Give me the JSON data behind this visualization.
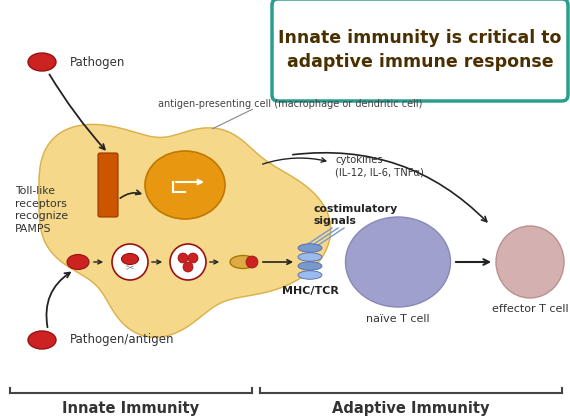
{
  "title_line1": "Innate immunity is critical to",
  "title_line2": "adaptive immune response",
  "title_box_color": "#2a9d8f",
  "title_text_color": "#4a3000",
  "bg_color": "#ffffff",
  "label_innate": "Innate Immunity",
  "label_adaptive": "Adaptive Immunity",
  "label_pathogen_top": "Pathogen",
  "label_pathogen_bottom": "Pathogen/antigen",
  "label_toll": "Toll-like\nreceptors\nrecognize\nPAMPS",
  "label_apc": "antigen-presenting cell (macrophage or dendritic cell)",
  "label_cytokines": "cytokines\n(IL-12, IL-6, TNFα)",
  "label_costimulatory": "costimulatory\nsignals",
  "label_mhc": "MHC/TCR",
  "label_naive": "naïve T cell",
  "label_effector": "effector T cell",
  "cell_blob_color": "#f5d88a",
  "cell_blob_edge": "#d4a840",
  "nucleus_color": "#e89810",
  "nucleus_edge": "#c07800",
  "naive_cell_color": "#a0a0cc",
  "naive_cell_edge": "#8888bb",
  "effector_cell_color": "#d4b0b0",
  "effector_cell_edge": "#bb9090",
  "pathogen_color": "#cc2222",
  "pathogen_edge": "#991111",
  "receptor_color": "#cc5500",
  "receptor_edge": "#993300",
  "arrow_color": "#222222",
  "mhc_color1": "#7799cc",
  "mhc_color2": "#99bbee",
  "peptide_color": "#ddaa44",
  "white": "#ffffff"
}
